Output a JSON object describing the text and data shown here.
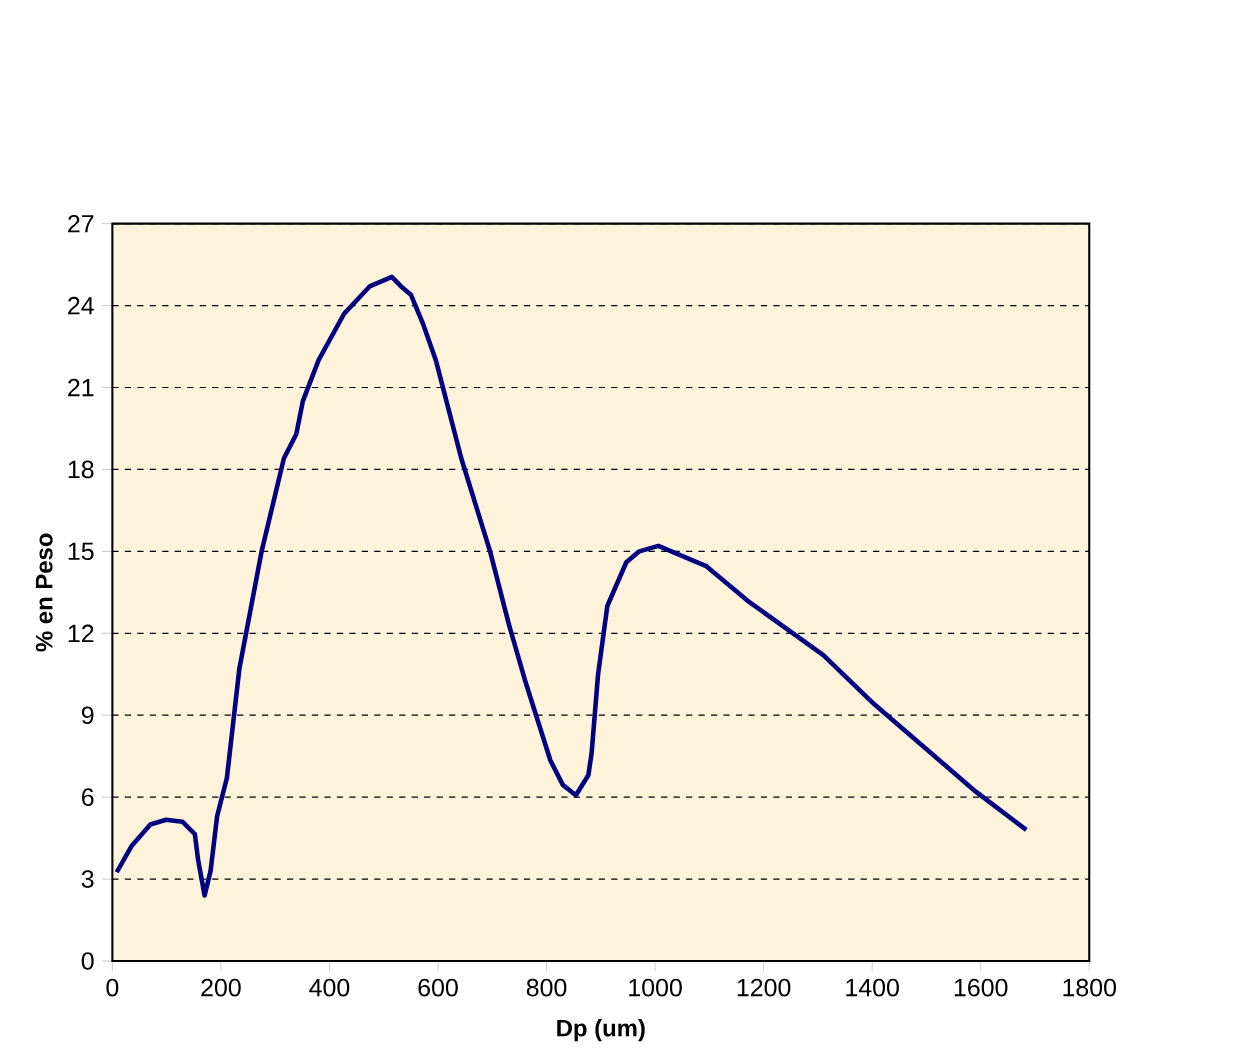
{
  "chart_data": {
    "type": "line",
    "xlabel": "Dp (um)",
    "ylabel": "% en Peso",
    "xlim": [
      0,
      1800
    ],
    "xticks": [
      0,
      200,
      400,
      600,
      800,
      1000,
      1200,
      1400,
      1600,
      1800
    ],
    "ylim": [
      0,
      27
    ],
    "yticks": [
      0,
      3,
      6,
      9,
      12,
      15,
      18,
      21,
      24,
      27
    ],
    "grid": "y",
    "line_style": "solid",
    "marker": "none",
    "series": [
      {
        "color": "#000080",
        "x": [
          8,
          35,
          70,
          99,
          129,
          152,
          158,
          170,
          181,
          193,
          211,
          234,
          275,
          316,
          339,
          351,
          380,
          427,
          474,
          515,
          532,
          550,
          573,
          596,
          643,
          696,
          731,
          760,
          807,
          830,
          854,
          877,
          883,
          895,
          912,
          947,
          971,
          1006,
          1094,
          1170,
          1310,
          1404,
          1591,
          1684
        ],
        "values": [
          3.25,
          4.2,
          5.0,
          5.17,
          5.1,
          4.65,
          3.7,
          2.4,
          3.3,
          5.3,
          6.7,
          10.7,
          15.0,
          18.4,
          19.3,
          20.5,
          22.0,
          23.7,
          24.7,
          25.05,
          24.7,
          24.4,
          23.3,
          22.0,
          18.4,
          15.0,
          12.3,
          10.3,
          7.35,
          6.45,
          6.07,
          6.8,
          7.6,
          10.5,
          13.0,
          14.6,
          15.0,
          15.2,
          14.46,
          13.2,
          11.2,
          9.4,
          6.2,
          4.8
        ]
      }
    ]
  }
}
